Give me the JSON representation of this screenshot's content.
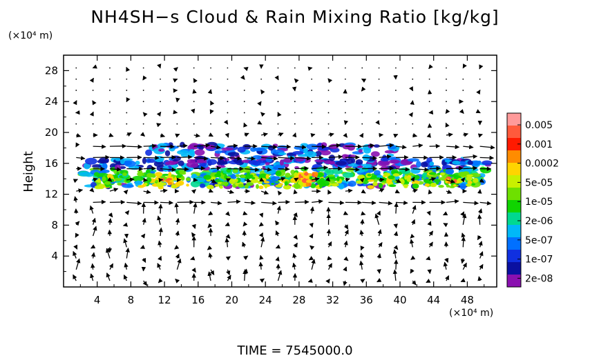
{
  "title": "NH4SH−s Cloud & Rain Mixing Ratio [kg/kg]",
  "y_unit": "(×10⁴ m)",
  "x_unit": "(×10⁴ m)",
  "time_label": "TIME  =  7545000.0",
  "chart_data": {
    "type": "heatmap",
    "title": "NH4SH−s Cloud & Rain Mixing Ratio [kg/kg]",
    "xlabel": "",
    "ylabel": "Height",
    "xlim": [
      0,
      51.5
    ],
    "ylim": [
      0,
      30
    ],
    "x_ticks": [
      4,
      8,
      12,
      16,
      20,
      24,
      28,
      32,
      36,
      40,
      44,
      48
    ],
    "y_ticks": [
      4,
      8,
      12,
      16,
      20,
      24,
      28
    ],
    "colorbar": {
      "labels": [
        "0.005",
        "0.001",
        "0.0002",
        "5e-05",
        "1e-05",
        "2e-06",
        "5e-07",
        "1e-07",
        "2e-08"
      ],
      "colors": [
        "#ff9a9a",
        "#ff5a3c",
        "#ff1a00",
        "#ff8c00",
        "#ffd400",
        "#c8f000",
        "#6ee000",
        "#10d400",
        "#00d890",
        "#00b8f8",
        "#0070ff",
        "#1030e0",
        "#0a10a0",
        "#8a10b0"
      ]
    },
    "cloud_layer": {
      "x_range": [
        2.2,
        50.5
      ],
      "base_height": 13,
      "top_height": 16.5,
      "upper_fragments_height": [
        16,
        18.5
      ],
      "max_value_location": {
        "x": 29,
        "y": 14
      },
      "peak_value_band": "0.0002"
    },
    "wind_vectors": {
      "description": "quiver field of wind arrows over the domain",
      "strong_eastward_levels": [
        11,
        16,
        18
      ]
    }
  }
}
